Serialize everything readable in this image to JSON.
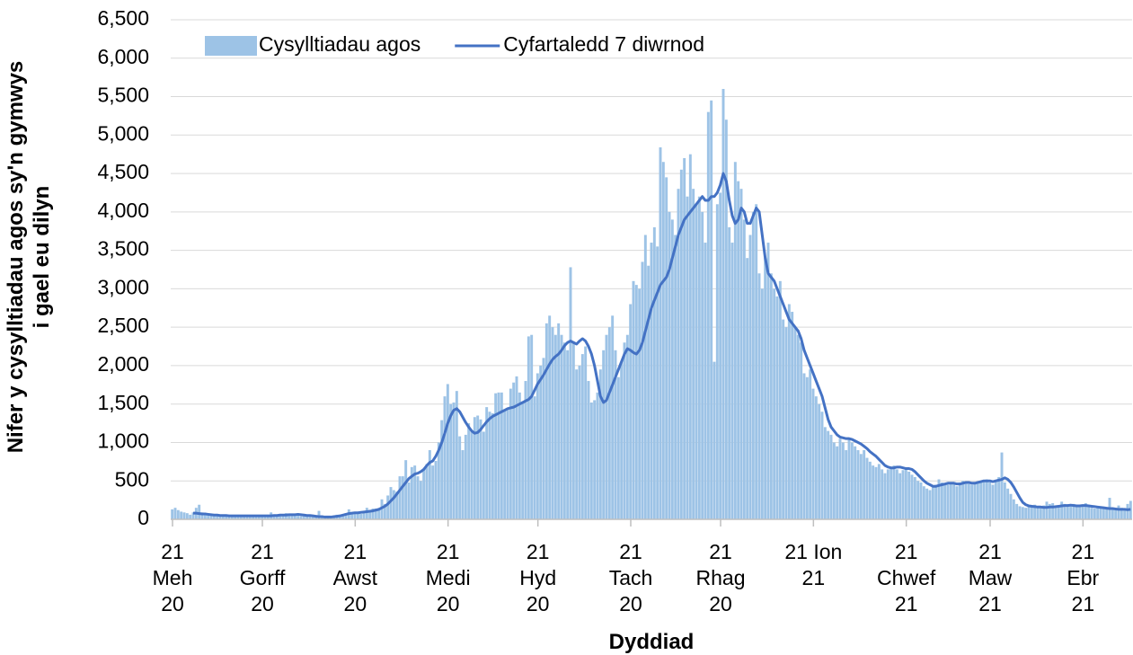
{
  "chart_data": {
    "type": "bar",
    "y_label": "Nifer y cysylltiadau agos sy'n gymwys\ni gael eu dilyn",
    "x_label": "Dyddiad",
    "categories": [
      "21\nMeh\n20",
      null,
      null,
      null,
      null,
      null,
      null,
      null,
      null,
      null,
      null,
      null,
      null,
      null,
      null,
      null,
      null,
      null,
      null,
      null,
      null,
      null,
      null,
      null,
      null,
      null,
      null,
      null,
      null,
      null,
      "21\nGorff\n20",
      null,
      null,
      null,
      null,
      null,
      null,
      null,
      null,
      null,
      null,
      null,
      null,
      null,
      null,
      null,
      null,
      null,
      null,
      null,
      null,
      null,
      null,
      null,
      null,
      null,
      null,
      null,
      null,
      null,
      null,
      "21\nAwst\n20",
      null,
      null,
      null,
      null,
      null,
      null,
      null,
      null,
      null,
      null,
      null,
      null,
      null,
      null,
      null,
      null,
      null,
      null,
      null,
      null,
      null,
      null,
      null,
      null,
      null,
      null,
      null,
      null,
      null,
      null,
      "21\nMedi\n20",
      null,
      null,
      null,
      null,
      null,
      null,
      null,
      null,
      null,
      null,
      null,
      null,
      null,
      null,
      null,
      null,
      null,
      null,
      null,
      null,
      null,
      null,
      null,
      null,
      null,
      null,
      null,
      null,
      null,
      "21\nHyd\n20",
      null,
      null,
      null,
      null,
      null,
      null,
      null,
      null,
      null,
      null,
      null,
      null,
      null,
      null,
      null,
      null,
      null,
      null,
      null,
      null,
      null,
      null,
      null,
      null,
      null,
      null,
      null,
      null,
      null,
      null,
      "21\nTach\n20",
      null,
      null,
      null,
      null,
      null,
      null,
      null,
      null,
      null,
      null,
      null,
      null,
      null,
      null,
      null,
      null,
      null,
      null,
      null,
      null,
      null,
      null,
      null,
      null,
      null,
      null,
      null,
      null,
      null,
      "21\nRhag\n20",
      null,
      null,
      null,
      null,
      null,
      null,
      null,
      null,
      null,
      null,
      null,
      null,
      null,
      null,
      null,
      null,
      null,
      null,
      null,
      null,
      null,
      null,
      null,
      null,
      null,
      null,
      null,
      null,
      null,
      null,
      "21 Ion\n21",
      null,
      null,
      null,
      null,
      null,
      null,
      null,
      null,
      null,
      null,
      null,
      null,
      null,
      null,
      null,
      null,
      null,
      null,
      null,
      null,
      null,
      null,
      null,
      null,
      null,
      null,
      null,
      null,
      null,
      null,
      "21\nChwef\n21",
      null,
      null,
      null,
      null,
      null,
      null,
      null,
      null,
      null,
      null,
      null,
      null,
      null,
      null,
      null,
      null,
      null,
      null,
      null,
      null,
      null,
      null,
      null,
      null,
      null,
      null,
      null,
      "21\nMaw\n21",
      null,
      null,
      null,
      null,
      null,
      null,
      null,
      null,
      null,
      null,
      null,
      null,
      null,
      null,
      null,
      null,
      null,
      null,
      null,
      null,
      null,
      null,
      null,
      null,
      null,
      null,
      null,
      null,
      null,
      null,
      "21 Ebr\n21",
      null,
      null,
      null,
      null,
      null,
      null,
      null,
      null,
      null,
      null,
      null,
      null,
      null,
      null,
      null,
      null
    ],
    "series": [
      {
        "name": "Cysylltiadau agos",
        "type": "bar",
        "color": "#9dc3e6",
        "values": [
          130,
          150,
          120,
          100,
          90,
          80,
          60,
          90,
          150,
          190,
          90,
          70,
          70,
          60,
          60,
          50,
          60,
          50,
          40,
          40,
          50,
          40,
          40,
          50,
          40,
          40,
          30,
          50,
          40,
          40,
          40,
          50,
          40,
          90,
          50,
          60,
          60,
          50,
          80,
          60,
          70,
          60,
          50,
          40,
          70,
          50,
          40,
          40,
          30,
          110,
          30,
          20,
          30,
          30,
          30,
          60,
          40,
          60,
          80,
          130,
          70,
          90,
          100,
          70,
          90,
          150,
          110,
          140,
          140,
          140,
          260,
          200,
          310,
          420,
          380,
          360,
          560,
          560,
          770,
          480,
          680,
          700,
          560,
          500,
          660,
          720,
          900,
          700,
          760,
          1000,
          1290,
          1600,
          1760,
          1500,
          1520,
          1670,
          1080,
          900,
          1100,
          1250,
          1150,
          1330,
          1350,
          1300,
          1140,
          1460,
          1400,
          1380,
          1640,
          1650,
          1650,
          1420,
          1450,
          1700,
          1780,
          1860,
          1650,
          1520,
          1800,
          2380,
          2400,
          1600,
          1900,
          2000,
          2100,
          2550,
          2650,
          2500,
          2400,
          2550,
          2400,
          2300,
          2200,
          3280,
          2300,
          1950,
          2000,
          2150,
          2250,
          1800,
          1520,
          1550,
          1650,
          1950,
          2200,
          2400,
          2500,
          2650,
          2200,
          1850,
          2050,
          2300,
          2400,
          2800,
          3100,
          3050,
          3000,
          3350,
          3700,
          3300,
          3600,
          3800,
          3550,
          4840,
          4650,
          4450,
          4000,
          3900,
          3700,
          4300,
          4550,
          4700,
          4200,
          4750,
          4300,
          4100,
          4200,
          4000,
          3600,
          5300,
          5450,
          2050,
          4100,
          4250,
          5600,
          5200,
          3800,
          3600,
          4650,
          4400,
          4300,
          3900,
          3400,
          3700,
          4000,
          4100,
          3200,
          3000,
          3400,
          3600,
          3200,
          3000,
          2900,
          3100,
          2600,
          2500,
          2800,
          2700,
          2500,
          2400,
          2300,
          1900,
          1850,
          1950,
          1700,
          1600,
          1500,
          1400,
          1200,
          1150,
          1100,
          1000,
          950,
          1050,
          1000,
          900,
          1050,
          1000,
          950,
          900,
          850,
          900,
          800,
          750,
          700,
          680,
          720,
          650,
          600,
          650,
          680,
          700,
          650,
          600,
          640,
          660,
          620,
          580,
          550,
          500,
          480,
          430,
          400,
          380,
          420,
          450,
          520,
          480,
          460,
          450,
          470,
          460,
          430,
          480,
          500,
          480,
          460,
          450,
          470,
          480,
          490,
          500,
          520,
          480,
          450,
          500,
          550,
          870,
          480,
          400,
          330,
          260,
          200,
          170,
          160,
          150,
          170,
          180,
          190,
          170,
          150,
          180,
          230,
          200,
          210,
          180,
          160,
          230,
          200,
          180,
          170,
          200,
          180,
          160,
          190,
          210,
          180,
          150,
          140,
          170,
          160,
          140,
          150,
          280,
          130,
          120,
          180,
          150,
          120,
          200,
          240
        ]
      },
      {
        "name": "Cyfartaledd 7 diwrnod",
        "type": "line",
        "color": "#4472c4",
        "values": [
          null,
          null,
          null,
          null,
          null,
          null,
          null,
          80,
          80,
          75,
          70,
          70,
          65,
          60,
          55,
          55,
          50,
          50,
          50,
          45,
          45,
          45,
          45,
          45,
          45,
          45,
          45,
          45,
          45,
          45,
          45,
          45,
          45,
          45,
          50,
          50,
          55,
          55,
          55,
          60,
          60,
          60,
          65,
          60,
          55,
          50,
          50,
          45,
          40,
          35,
          35,
          30,
          30,
          30,
          35,
          40,
          45,
          55,
          65,
          75,
          80,
          85,
          85,
          90,
          95,
          100,
          105,
          110,
          120,
          130,
          150,
          170,
          200,
          240,
          280,
          330,
          380,
          430,
          480,
          530,
          560,
          590,
          600,
          620,
          650,
          700,
          740,
          760,
          820,
          900,
          1000,
          1120,
          1250,
          1350,
          1420,
          1440,
          1400,
          1330,
          1260,
          1200,
          1150,
          1120,
          1130,
          1170,
          1220,
          1270,
          1310,
          1340,
          1360,
          1380,
          1400,
          1420,
          1440,
          1450,
          1460,
          1480,
          1500,
          1520,
          1540,
          1560,
          1600,
          1680,
          1760,
          1820,
          1880,
          1950,
          2020,
          2080,
          2120,
          2150,
          2200,
          2260,
          2300,
          2320,
          2300,
          2280,
          2320,
          2350,
          2320,
          2250,
          2150,
          2000,
          1800,
          1600,
          1520,
          1550,
          1650,
          1750,
          1850,
          1950,
          2050,
          2150,
          2220,
          2200,
          2170,
          2150,
          2200,
          2300,
          2450,
          2600,
          2750,
          2850,
          2950,
          3050,
          3100,
          3150,
          3250,
          3400,
          3550,
          3700,
          3800,
          3900,
          3950,
          4000,
          4050,
          4100,
          4150,
          4200,
          4150,
          4150,
          4200,
          4200,
          4250,
          4350,
          4500,
          4400,
          4150,
          3950,
          3850,
          3900,
          4050,
          4000,
          3850,
          3850,
          3950,
          4050,
          4000,
          3700,
          3400,
          3200,
          3150,
          3100,
          3000,
          2900,
          2800,
          2700,
          2600,
          2550,
          2500,
          2450,
          2350,
          2200,
          2100,
          2000,
          1900,
          1800,
          1700,
          1600,
          1450,
          1300,
          1200,
          1150,
          1100,
          1070,
          1060,
          1050,
          1050,
          1040,
          1020,
          1000,
          980,
          950,
          920,
          880,
          850,
          820,
          780,
          740,
          700,
          680,
          670,
          670,
          680,
          680,
          670,
          660,
          660,
          650,
          620,
          580,
          540,
          500,
          470,
          450,
          430,
          430,
          440,
          450,
          460,
          470,
          470,
          470,
          460,
          460,
          470,
          480,
          480,
          470,
          470,
          480,
          490,
          500,
          500,
          500,
          490,
          500,
          510,
          520,
          540,
          520,
          480,
          420,
          350,
          280,
          220,
          190,
          175,
          170,
          165,
          160,
          160,
          155,
          155,
          160,
          160,
          165,
          170,
          175,
          180,
          180,
          185,
          180,
          175,
          175,
          180,
          180,
          175,
          170,
          165,
          160,
          155,
          150,
          145,
          140,
          140,
          135,
          130,
          130,
          130,
          125,
          130
        ]
      }
    ],
    "ylim": [
      0,
      6500
    ],
    "yticks": [
      0,
      500,
      {
        "value": 1000,
        "label": "1,000"
      },
      {
        "value": 1500,
        "label": "1,500"
      },
      {
        "value": 2000,
        "label": "2,000"
      },
      {
        "value": 2500,
        "label": "2,500"
      },
      {
        "value": 3000,
        "label": "3,000"
      },
      {
        "value": 3500,
        "label": "3,500"
      },
      {
        "value": 4000,
        "label": "4,000"
      },
      {
        "value": 4500,
        "label": "4,500"
      },
      {
        "value": 5000,
        "label": "5,000"
      },
      {
        "value": 5500,
        "label": "5,500"
      },
      {
        "value": 6000,
        "label": "6,000"
      },
      {
        "value": 6500,
        "label": "6,500"
      }
    ],
    "grid": true,
    "legend": "top-left"
  }
}
